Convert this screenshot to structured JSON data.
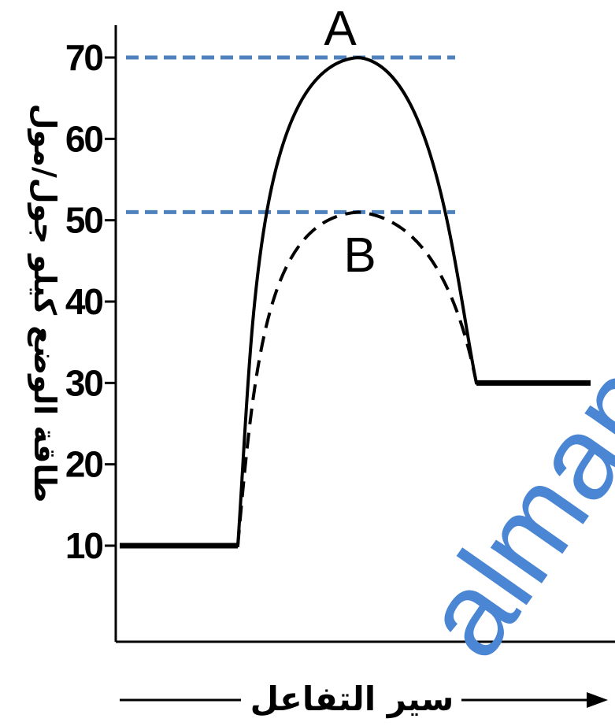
{
  "chart_data": {
    "type": "line",
    "title": "",
    "xlabel": "سير التفاعل",
    "ylabel": "طاقة الوضع كيلو جول/مول",
    "y_ticks": [
      10,
      20,
      30,
      40,
      50,
      60,
      70
    ],
    "grid": false,
    "legend": "none",
    "reactant_energy": 10,
    "product_energy": 30,
    "series": [
      {
        "key": "A",
        "line_style": "solid",
        "peak": 70,
        "points": [
          {
            "x": 0,
            "y": 10
          },
          {
            "x": 0.35,
            "y": 10
          },
          {
            "x": 0.65,
            "y": 70
          },
          {
            "x": 1.0,
            "y": 30
          },
          {
            "x": 1.4,
            "y": 30
          }
        ]
      },
      {
        "key": "B",
        "line_style": "dashed",
        "peak": 51,
        "points": [
          {
            "x": 0.35,
            "y": 10
          },
          {
            "x": 0.65,
            "y": 51
          },
          {
            "x": 1.0,
            "y": 30
          }
        ]
      }
    ],
    "reference_lines": [
      {
        "y": 70,
        "color": "#4f81bd",
        "style": "dashed"
      },
      {
        "y": 51,
        "color": "#4f81bd",
        "style": "dashed"
      }
    ],
    "annotations": [
      {
        "text": "A",
        "near": "peak of solid curve, above"
      },
      {
        "text": "B",
        "near": "peak of dashed curve, below"
      }
    ]
  },
  "watermark": {
    "text": "almanahj",
    "color": "#4a86d4"
  }
}
